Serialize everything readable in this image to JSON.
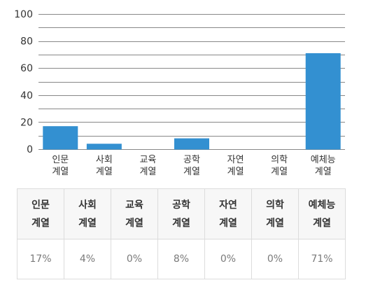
{
  "chart_data": {
    "type": "bar",
    "title": "",
    "xlabel": "",
    "ylabel": "",
    "ylim": [
      0,
      100
    ],
    "yticks": [
      0,
      20,
      40,
      60,
      80,
      100
    ],
    "grid": true,
    "categories": [
      [
        "인문",
        "계열"
      ],
      [
        "사회",
        "계열"
      ],
      [
        "교육",
        "계열"
      ],
      [
        "공학",
        "계열"
      ],
      [
        "자연",
        "계열"
      ],
      [
        "의학",
        "계열"
      ],
      [
        "예체능",
        "계열"
      ]
    ],
    "values": [
      17,
      4,
      0,
      8,
      0,
      0,
      71
    ],
    "bar_color": "#3390d1",
    "grid_color": "#888888"
  },
  "table": {
    "headers": [
      [
        "인문",
        "계열"
      ],
      [
        "사회",
        "계열"
      ],
      [
        "교육",
        "계열"
      ],
      [
        "공학",
        "계열"
      ],
      [
        "자연",
        "계열"
      ],
      [
        "의학",
        "계열"
      ],
      [
        "예체능",
        "계열"
      ]
    ],
    "values": [
      "17%",
      "4%",
      "0%",
      "8%",
      "0%",
      "0%",
      "71%"
    ]
  }
}
